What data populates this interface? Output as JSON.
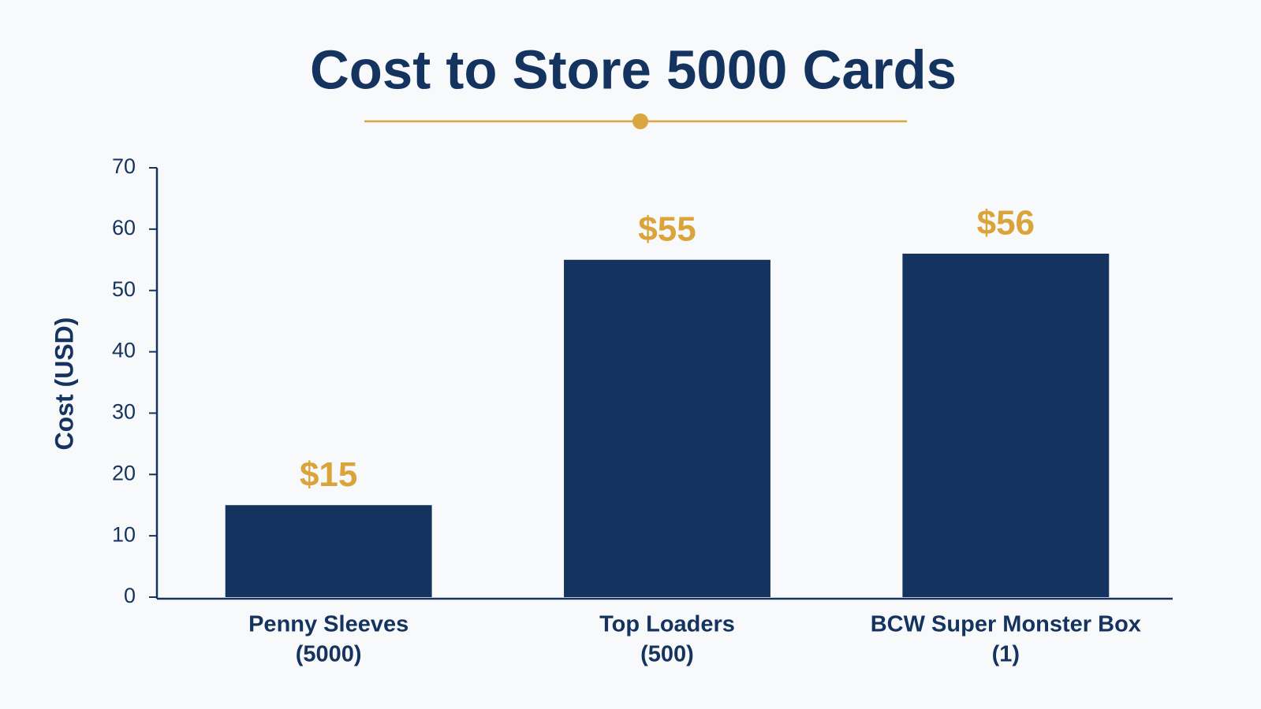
{
  "chart_data": {
    "type": "bar",
    "title": "Cost to Store 5000 Cards",
    "y_label": "Cost (USD)",
    "categories": [
      [
        "Penny Sleeves",
        "(5000)"
      ],
      [
        "Top Loaders",
        "(500)"
      ],
      [
        "BCW Super Monster Box",
        "(1)"
      ]
    ],
    "values": [
      15,
      55,
      56
    ],
    "value_labels": [
      "$15",
      "$55",
      "$56"
    ],
    "color": "#14335f",
    "label_color": "#dba43a",
    "ylim": [
      0,
      70
    ],
    "yticks": [
      0,
      10,
      20,
      30,
      40,
      50,
      60,
      70
    ],
    "grid": false
  }
}
